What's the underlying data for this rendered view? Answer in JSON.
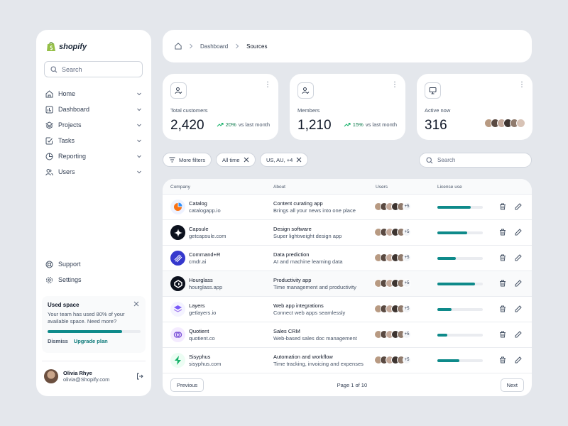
{
  "brand": {
    "name": "shopify",
    "color": "#95bf47"
  },
  "sidebar": {
    "search_placeholder": "Search",
    "items": [
      {
        "label": "Home",
        "icon": "home-icon"
      },
      {
        "label": "Dashboard",
        "icon": "bar-chart-icon"
      },
      {
        "label": "Projects",
        "icon": "layers-icon"
      },
      {
        "label": "Tasks",
        "icon": "check-square-icon"
      },
      {
        "label": "Reporting",
        "icon": "pie-chart-icon"
      },
      {
        "label": "Users",
        "icon": "users-icon"
      }
    ],
    "bottom_items": [
      {
        "label": "Support",
        "icon": "life-buoy-icon"
      },
      {
        "label": "Settings",
        "icon": "gear-icon"
      }
    ],
    "used_space": {
      "title": "Used space",
      "description": "Your team has used 80% of your available space. Need more?",
      "progress": 0.8,
      "dismiss": "Dismiss",
      "upgrade": "Upgrade plan"
    },
    "user": {
      "name": "Olivia Rhye",
      "email": "olivia@Shopify.com"
    }
  },
  "breadcrumb": {
    "items": [
      "Dashboard",
      "Sources"
    ]
  },
  "stats": [
    {
      "label": "Total customers",
      "value": "2,420",
      "change": "20%",
      "compare": "vs last month",
      "icon": "user-check-icon"
    },
    {
      "label": "Members",
      "value": "1,210",
      "change": "15%",
      "compare": "vs last month",
      "icon": "user-check-icon"
    },
    {
      "label": "Active now",
      "value": "316",
      "icon": "monitor-icon"
    }
  ],
  "filters": {
    "more": "More filters",
    "time": "All time",
    "region": "US, AU, +4",
    "search_placeholder": "Search"
  },
  "table": {
    "headers": {
      "company": "Company",
      "about": "About",
      "users": "Users",
      "license": "License use"
    },
    "more_users": "+5",
    "rows": [
      {
        "name": "Catalog",
        "domain": "catalogapp.io",
        "about_title": "Content curating app",
        "about_desc": "Brings all your news into one place",
        "license": 0.74
      },
      {
        "name": "Capsule",
        "domain": "getcapsule.com",
        "about_title": "Design software",
        "about_desc": "Super lightweight design app",
        "license": 0.66
      },
      {
        "name": "Command+R",
        "domain": "cmdr.ai",
        "about_title": "Data prediction",
        "about_desc": "AI and machine learning data",
        "license": 0.4
      },
      {
        "name": "Hourglass",
        "domain": "hourglass.app",
        "about_title": "Productivity app",
        "about_desc": "Time management and productivity",
        "license": 0.83
      },
      {
        "name": "Layers",
        "domain": "getlayers.io",
        "about_title": "Web app integrations",
        "about_desc": "Connect web apps seamlessly",
        "license": 0.32
      },
      {
        "name": "Quotient",
        "domain": "quotient.co",
        "about_title": "Sales CRM",
        "about_desc": "Web-based sales doc management",
        "license": 0.22
      },
      {
        "name": "Sisyphus",
        "domain": "sisyphus.com",
        "about_title": "Automation and workflow",
        "about_desc": "Time tracking, invoicing and expenses",
        "license": 0.48
      }
    ],
    "pagination": {
      "previous": "Previous",
      "page": "Page 1 of 10",
      "next": "Next"
    }
  },
  "colors": {
    "accent": "#0e8a8a",
    "positive": "#067647"
  }
}
